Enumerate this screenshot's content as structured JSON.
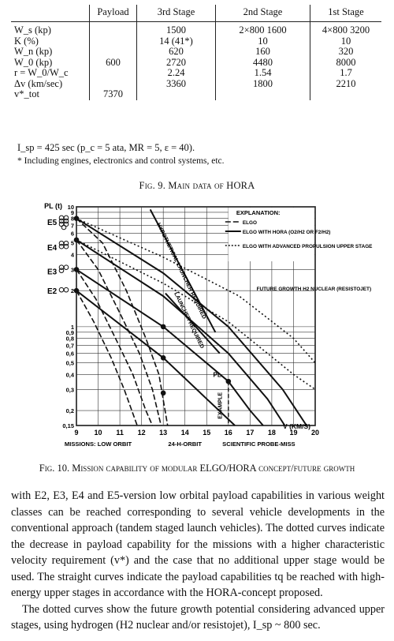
{
  "table": {
    "headers": [
      "",
      "Payload",
      "3rd Stage",
      "2nd Stage",
      "1st Stage"
    ],
    "rows": [
      {
        "label": "W_s (kp)",
        "payload": "",
        "s3": "1500",
        "s2": "2×800  1600",
        "s1": "4×800  3200"
      },
      {
        "label": "K (%)",
        "payload": "",
        "s3": "14 (41*)",
        "s2": "10",
        "s1": "10"
      },
      {
        "label": "W_n (kp)",
        "payload": "",
        "s3": "620",
        "s2": "160",
        "s1": "320"
      },
      {
        "label": "W_0 (kp)",
        "payload": "600",
        "s3": "2720",
        "s2": "4480",
        "s1": "8000"
      },
      {
        "label": "r = W_0/W_c",
        "payload": "",
        "s3": "2.24",
        "s2": "1.54",
        "s1": "1.7"
      },
      {
        "label": "Δv (km/sec)",
        "payload": "",
        "s3": "3360",
        "s2": "1800",
        "s1": "2210"
      },
      {
        "label": "v*_tot",
        "payload": "7370",
        "s3": "",
        "s2": "",
        "s1": ""
      }
    ]
  },
  "notes": {
    "isp_line": "I_sp = 425 sec (p_c = 5 ata, MR = 5, ε = 40).",
    "footnote": "* Including engines, electronics and control systems, etc."
  },
  "fig9_caption": "Fig. 9. Main data of HORA",
  "fig10_caption": "Fig. 10. Mission capability of modular ELGO/HORA concept/future growth",
  "chart_data": {
    "type": "line",
    "ylabel": "PL (t)",
    "xlabel": "V (KM/S)",
    "x_ticks": [
      "9",
      "10",
      "11",
      "12",
      "13",
      "14",
      "15",
      "16",
      "17",
      "18",
      "19",
      "20"
    ],
    "y_ticks": [
      "0,15",
      "0,2",
      "0,3",
      "0,4",
      "0,5",
      "0,6",
      "0,7",
      "0,8",
      "0,9",
      "1",
      "2",
      "3",
      "4",
      "5",
      "6",
      "7",
      "8",
      "9",
      "10"
    ],
    "y_scale": "log",
    "xlim": [
      9,
      20
    ],
    "ylim": [
      0.15,
      10
    ],
    "vehicles": [
      "E5",
      "E4",
      "E3",
      "E2"
    ],
    "legend": {
      "title": "EXPLANATION:",
      "items": [
        "ELGO",
        "ELGO WITH HORA (O2/H2 OR F2/H2)",
        "ELGO WITH ADVANCED PROPULSION UPPER STAGE"
      ],
      "placement": "top-right"
    },
    "annotations": [
      "HYPOTHETICAL LAUNCHER REQUIRED",
      "LAUNCHER REQUIRED",
      "FUTURE GROWTH H2 NUCLEAR (RESISTOJET)",
      "PL",
      "EXAMPLE"
    ],
    "mission_labels": [
      "MISSIONS: LOW ORBIT",
      "24-H-ORBIT",
      "SCIENTIFIC PROBE-MISS"
    ],
    "series": [
      {
        "name": "E5",
        "style": "dashed",
        "values": [
          [
            9,
            8
          ],
          [
            10.2,
            5
          ],
          [
            11.3,
            2
          ],
          [
            12.2,
            0.8
          ],
          [
            12.8,
            0.4
          ],
          [
            13.2,
            0.15
          ]
        ]
      },
      {
        "name": "E4",
        "style": "dashed",
        "values": [
          [
            9,
            5.3
          ],
          [
            10,
            3
          ],
          [
            11,
            1.3
          ],
          [
            11.9,
            0.6
          ],
          [
            12.5,
            0.3
          ],
          [
            12.9,
            0.15
          ]
        ]
      },
      {
        "name": "E3",
        "style": "dashed",
        "values": [
          [
            9,
            3
          ],
          [
            9.9,
            1.7
          ],
          [
            10.8,
            0.8
          ],
          [
            11.6,
            0.4
          ],
          [
            12.2,
            0.2
          ],
          [
            12.5,
            0.15
          ]
        ]
      },
      {
        "name": "E2",
        "style": "dashed",
        "values": [
          [
            9,
            2
          ],
          [
            9.8,
            1.1
          ],
          [
            10.6,
            0.55
          ],
          [
            11.2,
            0.3
          ],
          [
            11.8,
            0.15
          ]
        ]
      },
      {
        "name": "E5",
        "style": "solid",
        "values": [
          [
            9,
            8
          ],
          [
            13,
            2.8
          ],
          [
            16,
            1
          ],
          [
            18.5,
            0.3
          ],
          [
            19.6,
            0.15
          ]
        ]
      },
      {
        "name": "E4",
        "style": "solid",
        "values": [
          [
            9,
            5.3
          ],
          [
            13,
            1.8
          ],
          [
            16,
            0.6
          ],
          [
            17.8,
            0.25
          ],
          [
            18.6,
            0.15
          ]
        ]
      },
      {
        "name": "E3",
        "style": "solid",
        "values": [
          [
            9,
            3
          ],
          [
            13,
            1
          ],
          [
            16,
            0.35
          ],
          [
            17,
            0.2
          ],
          [
            17.6,
            0.15
          ]
        ]
      },
      {
        "name": "E2",
        "style": "solid",
        "values": [
          [
            9,
            2
          ],
          [
            13,
            0.55
          ],
          [
            15,
            0.25
          ],
          [
            16.3,
            0.15
          ]
        ]
      },
      {
        "name": "E5",
        "style": "dotted",
        "values": [
          [
            9,
            8
          ],
          [
            13,
            3.8
          ],
          [
            16.5,
            1.8
          ],
          [
            19,
            0.8
          ],
          [
            20,
            0.5
          ]
        ]
      },
      {
        "name": "E4",
        "style": "dotted",
        "values": [
          [
            9,
            5.3
          ],
          [
            13,
            2.3
          ],
          [
            16,
            1.1
          ],
          [
            19,
            0.4
          ],
          [
            20,
            0.3
          ]
        ]
      }
    ],
    "points": [
      [
        9,
        8
      ],
      [
        9,
        5.3
      ],
      [
        9,
        3
      ],
      [
        9,
        2
      ],
      [
        13,
        1
      ],
      [
        13,
        0.55
      ],
      [
        13,
        0.28
      ],
      [
        16,
        0.35
      ]
    ]
  },
  "body": {
    "p1": "with E2, E3, E4 and E5-version low orbital payload capabilities in various weight classes can be reached corresponding to several vehicle developments in the conventional approach (tandem staged launch vehicles). The dotted curves indicate the decrease in payload capability for the missions with a higher characteristic velocity requirement (v*) and the case that no additional upper stage would be used. The straight curves indicate the payload capabilities tq be reached with high-energy upper stages in accordance with the HORA-concept proposed.",
    "p2": "The dotted curves show the future growth potential considering advanced upper stages, using hydrogen (H2 nuclear and/or resistojet), I_sp ~ 800 sec."
  }
}
